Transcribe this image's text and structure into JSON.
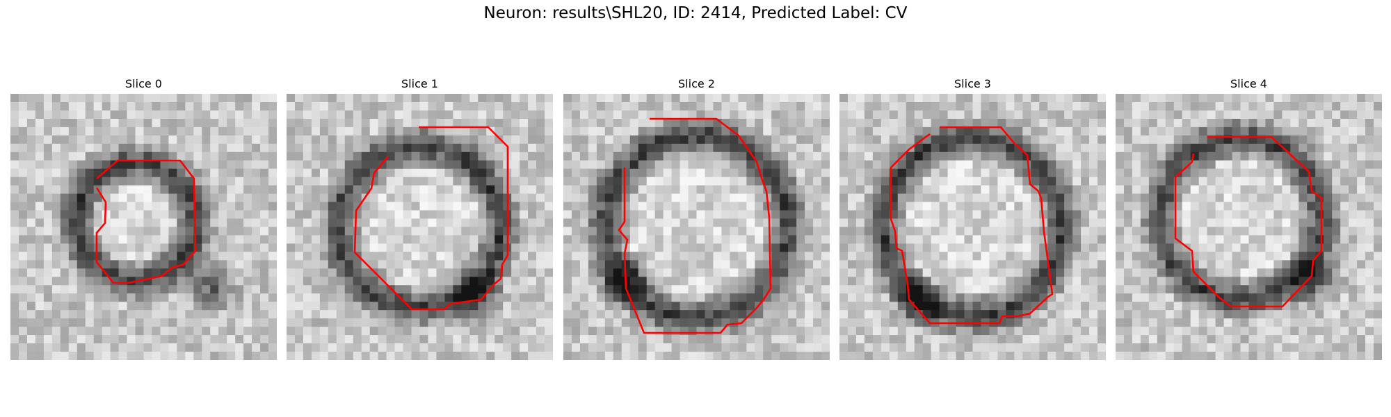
{
  "figure": {
    "title": "Neuron: results\\SHL20, ID: 2414, Predicted Label: CV"
  },
  "contour_color": "#ff0000",
  "slices": [
    {
      "title": "Slice 0"
    },
    {
      "title": "Slice 1"
    },
    {
      "title": "Slice 2"
    },
    {
      "title": "Slice 3"
    },
    {
      "title": "Slice 4"
    }
  ]
}
